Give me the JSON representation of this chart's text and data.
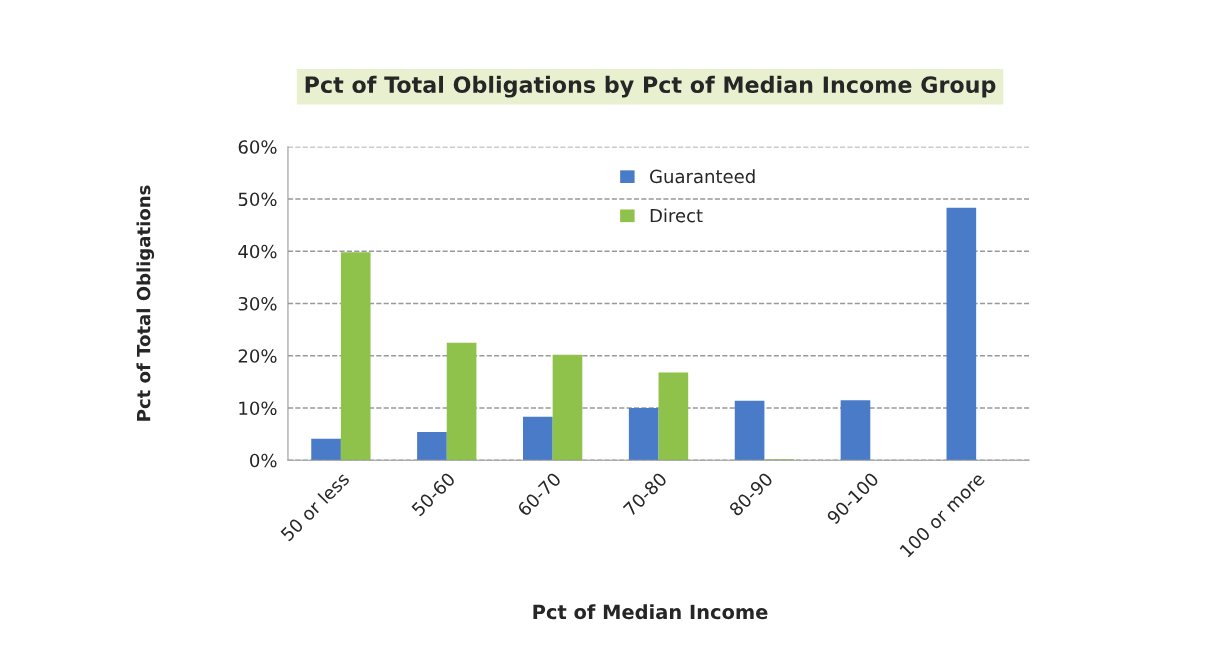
{
  "chart_data": {
    "type": "bar",
    "title": "Pct of Total Obligations by Pct of Median Income Group",
    "xlabel": "Pct of Median Income",
    "ylabel": "Pct of Total Obligations",
    "categories": [
      "50 or less",
      "50-60",
      "60-70",
      "70-80",
      "80-90",
      "90-100",
      "100 or more"
    ],
    "series": [
      {
        "name": "Guaranteed",
        "color": "#4a7bc8",
        "values": [
          4.1,
          5.4,
          8.3,
          10.0,
          11.4,
          11.5,
          48.3
        ]
      },
      {
        "name": "Direct",
        "color": "#8fc24a",
        "values": [
          39.8,
          22.5,
          20.2,
          16.8,
          0.2,
          null,
          null
        ]
      }
    ],
    "ylim": [
      0,
      60
    ],
    "yticks": [
      {
        "value": 0,
        "label": "0%"
      },
      {
        "value": 10,
        "label": "10%"
      },
      {
        "value": 20,
        "label": "20%"
      },
      {
        "value": 30,
        "label": "30%"
      },
      {
        "value": 40,
        "label": "40%"
      },
      {
        "value": 50,
        "label": "50%"
      },
      {
        "value": 60,
        "label": "60%"
      }
    ],
    "grid": "y",
    "legend": "top"
  }
}
